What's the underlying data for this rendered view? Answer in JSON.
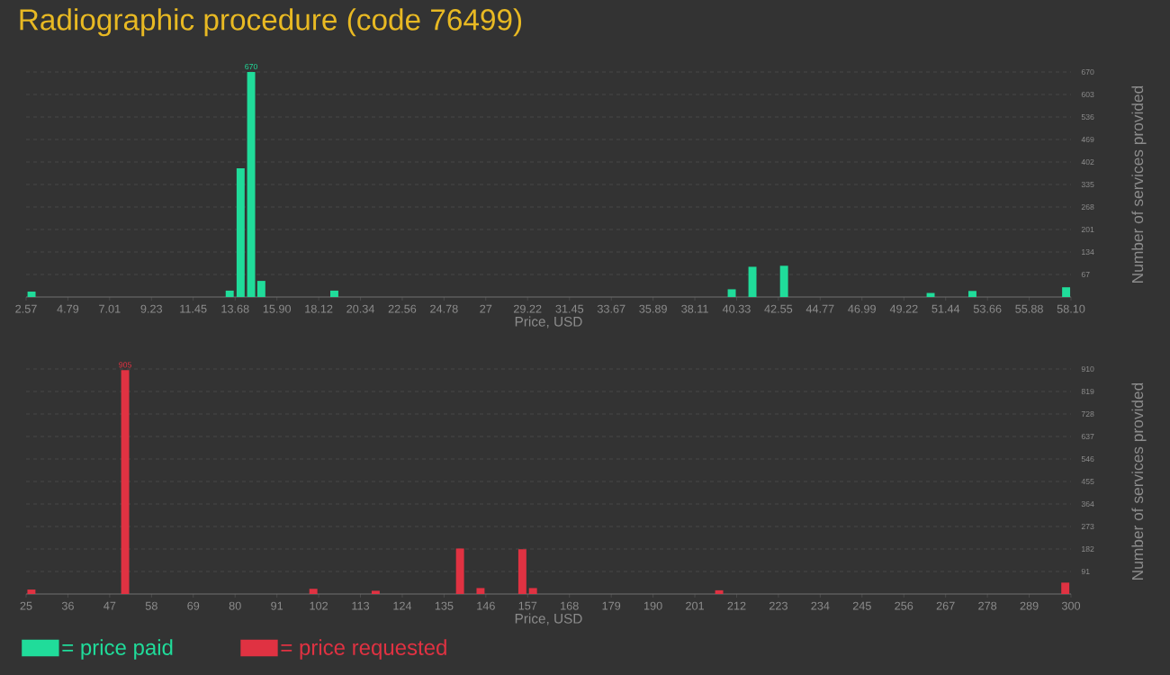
{
  "chart_data": [
    {
      "type": "bar",
      "title": "Radiographic procedure (code 76499)",
      "xlabel": "Price, USD",
      "ylabel": "Number of services provided",
      "x": [
        2.86,
        13.39,
        13.97,
        14.53,
        15.07,
        18.95,
        40.07,
        41.17,
        42.85,
        50.64,
        52.86,
        57.84
      ],
      "series": [
        {
          "name": "= price paid",
          "color": "#20dc9a",
          "values": [
            16,
            19,
            383,
            670,
            48,
            19,
            23,
            90,
            93,
            12,
            18,
            29
          ],
          "value_labels": [
            null,
            null,
            null,
            "670",
            null,
            null,
            null,
            null,
            null,
            null,
            null,
            null
          ]
        }
      ],
      "xlim": [
        2.57,
        58.1
      ],
      "ylim": [
        0,
        670
      ],
      "xticks": [
        2.57,
        4.79,
        7.01,
        9.23,
        11.45,
        13.68,
        {
          "value": 15.9,
          "label": "15.90"
        },
        18.12,
        20.34,
        22.56,
        24.78,
        27,
        29.22,
        31.45,
        33.67,
        35.89,
        38.11,
        40.33,
        42.55,
        44.77,
        46.99,
        49.22,
        51.44,
        53.66,
        55.88,
        {
          "value": 58.1,
          "label": "58.10"
        }
      ],
      "yticks": [
        67,
        134,
        201,
        268,
        335,
        402,
        469,
        536,
        603,
        670
      ],
      "grid": "y",
      "legend": "bottom left"
    },
    {
      "type": "bar",
      "xlabel": "Price, USD",
      "ylabel": "Number of services provided",
      "x": [
        26.4,
        51.07,
        100.6,
        117.0,
        139.2,
        144.6,
        155.6,
        158.4,
        207.4,
        298.5
      ],
      "series": [
        {
          "name": "= price requested",
          "color": "#e03242",
          "values": [
            18,
            905,
            21,
            13,
            184,
            24,
            181,
            24,
            15,
            46
          ],
          "value_labels": [
            null,
            "905",
            null,
            null,
            null,
            null,
            null,
            null,
            null,
            null
          ]
        }
      ],
      "xlim": [
        25,
        300
      ],
      "ylim": [
        0,
        910
      ],
      "xticks": [
        25,
        36,
        47,
        58,
        69,
        80,
        91,
        102,
        113,
        124,
        135,
        146,
        157,
        168,
        179,
        190,
        201,
        212,
        223,
        234,
        245,
        256,
        267,
        278,
        289,
        300
      ],
      "yticks": [
        91,
        182,
        273,
        364,
        455,
        546,
        637,
        728,
        819,
        910
      ],
      "grid": "y",
      "legend": "bottom left"
    }
  ]
}
